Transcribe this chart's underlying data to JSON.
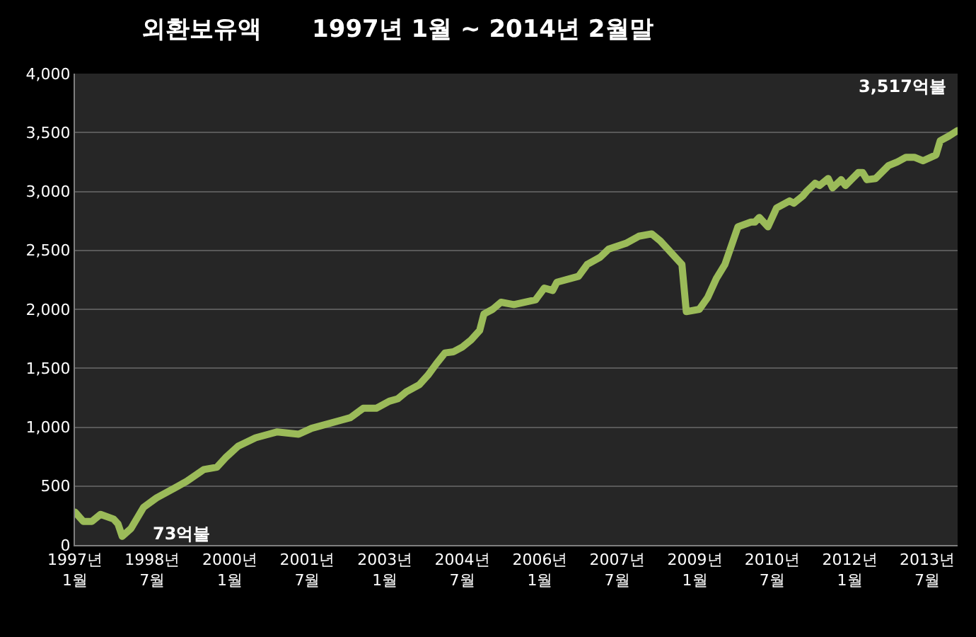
{
  "chart_data": {
    "type": "line",
    "title": "외환보유액      1997년 1월 ~ 2014년 2월말",
    "x": [
      "1997-01",
      "1997-03",
      "1997-05",
      "1997-07",
      "1997-10",
      "1997-11",
      "1997-12",
      "1998-02",
      "1998-05",
      "1998-08",
      "1998-12",
      "1999-03",
      "1999-07",
      "1999-10",
      "1999-12",
      "2000-03",
      "2000-07",
      "2000-10",
      "2000-12",
      "2001-05",
      "2001-08",
      "2002-03",
      "2002-05",
      "2002-08",
      "2002-11",
      "2003-02",
      "2003-04",
      "2003-06",
      "2003-09",
      "2003-11",
      "2004-01",
      "2004-03",
      "2004-05",
      "2004-07",
      "2004-09",
      "2004-11",
      "2004-12",
      "2005-02",
      "2005-04",
      "2005-07",
      "2005-12",
      "2006-02",
      "2006-04",
      "2006-05",
      "2006-10",
      "2006-12",
      "2007-03",
      "2007-05",
      "2007-09",
      "2007-12",
      "2008-03",
      "2008-05",
      "2008-09",
      "2008-10",
      "2008-11",
      "2009-02",
      "2009-04",
      "2009-06",
      "2009-08",
      "2009-11",
      "2010-02",
      "2010-03",
      "2010-04",
      "2010-06",
      "2010-08",
      "2010-11",
      "2010-12",
      "2011-02",
      "2011-03",
      "2011-05",
      "2011-06",
      "2011-08",
      "2011-09",
      "2011-11",
      "2011-12",
      "2012-03",
      "2012-04",
      "2012-05",
      "2012-07",
      "2012-10",
      "2012-12",
      "2013-02",
      "2013-04",
      "2013-06",
      "2013-09",
      "2013-10",
      "2013-12",
      "2014-02"
    ],
    "series": [
      {
        "color": "#9bbb59",
        "values": [
          280,
          200,
          200,
          260,
          220,
          180,
          73,
          140,
          320,
          400,
          480,
          540,
          640,
          660,
          740,
          840,
          910,
          940,
          960,
          940,
          990,
          1060,
          1080,
          1160,
          1160,
          1220,
          1240,
          1300,
          1360,
          1440,
          1540,
          1630,
          1640,
          1680,
          1740,
          1820,
          1960,
          2000,
          2060,
          2040,
          2080,
          2180,
          2160,
          2230,
          2280,
          2380,
          2440,
          2510,
          2560,
          2620,
          2640,
          2580,
          2420,
          2380,
          1980,
          2000,
          2100,
          2260,
          2380,
          2700,
          2740,
          2740,
          2780,
          2700,
          2860,
          2920,
          2900,
          2960,
          3000,
          3070,
          3050,
          3110,
          3030,
          3100,
          3050,
          3160,
          3160,
          3100,
          3110,
          3220,
          3250,
          3290,
          3290,
          3260,
          3310,
          3430,
          3470,
          3517
        ]
      }
    ],
    "xlim": [
      "1997-01",
      "2014-02"
    ],
    "xticks": [
      {
        "value": "1997-01",
        "label": "1997년 1월"
      },
      {
        "value": "1998-07",
        "label": "1998년 7월"
      },
      {
        "value": "2000-01",
        "label": "2000년 1월"
      },
      {
        "value": "2001-07",
        "label": "2001년 7월"
      },
      {
        "value": "2003-01",
        "label": "2003년 1월"
      },
      {
        "value": "2004-07",
        "label": "2004년 7월"
      },
      {
        "value": "2006-01",
        "label": "2006년 1월"
      },
      {
        "value": "2007-07",
        "label": "2007년 7월"
      },
      {
        "value": "2009-01",
        "label": "2009년 1월"
      },
      {
        "value": "2010-07",
        "label": "2010년 7월"
      },
      {
        "value": "2012-01",
        "label": "2012년 1월"
      },
      {
        "value": "2013-07",
        "label": "2013년 7월"
      }
    ],
    "ylim": [
      0,
      4000
    ],
    "yticks": [
      0,
      500,
      {
        "value": 1000,
        "label": "1,000"
      },
      {
        "value": 1500,
        "label": "1,500"
      },
      {
        "value": 2000,
        "label": "2,000"
      },
      {
        "value": 2500,
        "label": "2,500"
      },
      {
        "value": 3000,
        "label": "3,000"
      },
      {
        "value": 3500,
        "label": "3,500"
      },
      {
        "value": 4000,
        "label": "4,000"
      }
    ],
    "grid": "y",
    "annotations": [
      {
        "text": "73억불",
        "x": "1997-12",
        "y": 73
      },
      {
        "text": "3,517억불",
        "x": "2014-02",
        "y": 3517
      }
    ]
  }
}
